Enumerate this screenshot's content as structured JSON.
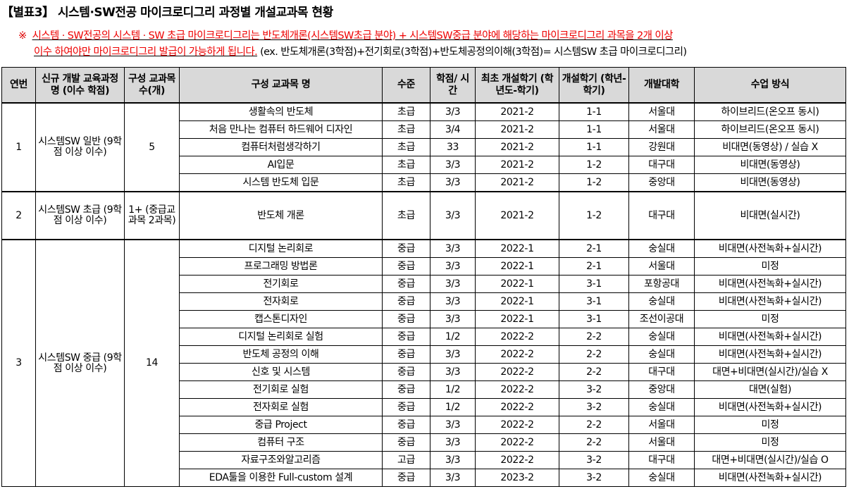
{
  "title": "【별표3】 시스템·SW전공 마이크로디그리 과정별 개설교과목 현황",
  "note": {
    "mark": "※",
    "red_line1": "시스템 · SW전공의 시스템 · SW 초급 마이크로디그리는 반도체개론(시스템SW초급 분야) + 시스템SW중급 분야에 해당하는 마이크로디그리 과목을 2개 이상",
    "red_line2": "이수 하여야만 마이크로디그리 발급이 가능하게 됩니다.",
    "example": " (ex. 반도체개론(3학점)+전기회로(3학점)+반도체공정의이해(3학점)= 시스템SW 초급 마이크로디그리)"
  },
  "table": {
    "headers": [
      "연번",
      "신규 개발 교육과정 명 (이수 학점)",
      "구성 교과목 수(개)",
      "구성 교과목 명",
      "수준",
      "학점/ 시간",
      "최초 개설학기 (학년도-학기)",
      "개설학기 (학년-학기)",
      "개발대학",
      "수업 방식"
    ],
    "groups": [
      {
        "no": "1",
        "program": "시스템SW 일반 (9학점 이상 이수)",
        "count": "5",
        "courses": [
          [
            "생활속의 반도체",
            "초급",
            "3/3",
            "2021-2",
            "1-1",
            "서울대",
            "하이브리드(온오프 동시)"
          ],
          [
            "처음 만나는 컴퓨터 하드웨어 디자인",
            "초급",
            "3/4",
            "2021-2",
            "1-1",
            "서울대",
            "하이브리드(온오프 동시)"
          ],
          [
            "컴퓨터처럼생각하기",
            "초급",
            "33",
            "2021-2",
            "1-1",
            "강원대",
            "비대면(동영상) / 실습 X"
          ],
          [
            "AI입문",
            "초급",
            "3/3",
            "2021-2",
            "1-2",
            "대구대",
            "비대면(동영상)"
          ],
          [
            "시스템 반도체 입문",
            "초급",
            "3/3",
            "2021-2",
            "1-2",
            "중앙대",
            "비대면(동영상)"
          ]
        ]
      },
      {
        "no": "2",
        "program": "시스템SW 초급 (9학점 이상 이수)",
        "count": "1+ (중급교 과목 2과목)",
        "courses": [
          [
            "반도체 개론",
            "초급",
            "3/3",
            "2021-2",
            "1-2",
            "대구대",
            "비대면(실시간)"
          ]
        ]
      },
      {
        "no": "3",
        "program": "시스템SW 중급 (9학점 이상 이수)",
        "count": "14",
        "courses": [
          [
            "디지털 논리회로",
            "중급",
            "3/3",
            "2022-1",
            "2-1",
            "숭실대",
            "비대면(사전녹화+실시간)"
          ],
          [
            "프로그래밍 방법론",
            "중급",
            "3/3",
            "2022-1",
            "2-1",
            "서울대",
            "미정"
          ],
          [
            "전기회로",
            "중급",
            "3/3",
            "2022-1",
            "3-1",
            "포항공대",
            "비대면(사전녹화+실시간)"
          ],
          [
            "전자회로",
            "중급",
            "3/3",
            "2022-1",
            "3-1",
            "숭실대",
            "비대면(사전녹화+실시간)"
          ],
          [
            "캡스톤디자인",
            "중급",
            "3/3",
            "2022-1",
            "3-1",
            "조선이공대",
            "미정"
          ],
          [
            "디지털 논리회로 실험",
            "중급",
            "1/2",
            "2022-2",
            "2-2",
            "숭실대",
            "비대면(사전녹화+실시간)"
          ],
          [
            "반도체 공정의 이해",
            "중급",
            "3/3",
            "2022-2",
            "2-2",
            "숭실대",
            "비대면(사전녹화+실시간)"
          ],
          [
            "신호 및 시스템",
            "중급",
            "3/3",
            "2022-2",
            "2-2",
            "대구대",
            "대면+비대면(실시간)/실습 X"
          ],
          [
            "전기회로 실험",
            "중급",
            "1/2",
            "2022-2",
            "3-2",
            "중앙대",
            "대면(실험)"
          ],
          [
            "전자회로 실험",
            "중급",
            "1/2",
            "2022-2",
            "3-2",
            "숭실대",
            "비대면(사전녹화+실시간)"
          ],
          [
            "중급 Project",
            "중급",
            "3/3",
            "2022-2",
            "2-2",
            "서울대",
            "미정"
          ],
          [
            "컴퓨터 구조",
            "중급",
            "3/3",
            "2022-2",
            "2-2",
            "서울대",
            "미정"
          ],
          [
            "자료구조와알고리즘",
            "고급",
            "3/3",
            "2022-2",
            "3-2",
            "대구대",
            "대면+비대면(실시간)/실습 O"
          ],
          [
            "EDA툴을 이용한 Full-custom 설계",
            "중급",
            "3/3",
            "2023-2",
            "3-2",
            "숭실대",
            "비대면(사전녹화+실시간)"
          ]
        ]
      }
    ]
  }
}
